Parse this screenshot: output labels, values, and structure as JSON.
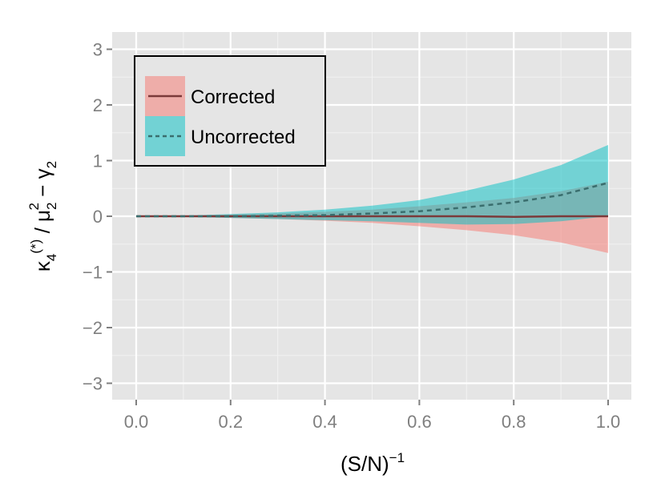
{
  "chart_data": {
    "type": "area",
    "x_axis": {
      "label_base": "(S/N)",
      "label_sup": "−1",
      "range": [
        0,
        1
      ],
      "ticks": [
        "0.0",
        "0.2",
        "0.4",
        "0.6",
        "0.8",
        "1.0"
      ]
    },
    "y_axis": {
      "label_parts": [
        "κ",
        "4",
        "(*)",
        " / μ",
        "2",
        "2",
        " − γ",
        "2"
      ],
      "range": [
        -3.3,
        3.3
      ],
      "ticks": [
        "3",
        "2",
        "1",
        "0",
        "−1",
        "−2",
        "−3"
      ]
    },
    "grid": true,
    "legend": {
      "position": "top-left"
    },
    "series": [
      {
        "name": "Corrected",
        "line_style": "solid",
        "line_color": "#7b3a3a",
        "fill_color": "#f8766d",
        "fill_opacity": 0.5,
        "x": [
          0.0,
          0.1,
          0.2,
          0.3,
          0.4,
          0.5,
          0.6,
          0.7,
          0.8,
          0.9,
          1.0
        ],
        "mean": [
          0,
          0,
          0,
          0,
          0,
          0,
          0,
          0,
          -0.01,
          0,
          0
        ],
        "lower": [
          0,
          -0.01,
          -0.03,
          -0.05,
          -0.08,
          -0.12,
          -0.18,
          -0.25,
          -0.34,
          -0.47,
          -0.66
        ],
        "upper": [
          0,
          0.01,
          0.03,
          0.05,
          0.08,
          0.12,
          0.18,
          0.25,
          0.33,
          0.45,
          0.62
        ]
      },
      {
        "name": "Uncorrected",
        "line_style": "dashed",
        "line_color": "#3a6e6e",
        "fill_color": "#00bfc4",
        "fill_opacity": 0.5,
        "x": [
          0.0,
          0.1,
          0.2,
          0.3,
          0.4,
          0.5,
          0.6,
          0.7,
          0.8,
          0.9,
          1.0
        ],
        "mean": [
          0,
          0,
          0.0,
          0.01,
          0.02,
          0.05,
          0.09,
          0.16,
          0.25,
          0.38,
          0.6
        ],
        "lower": [
          0,
          -0.01,
          -0.03,
          -0.05,
          -0.07,
          -0.09,
          -0.12,
          -0.15,
          -0.14,
          -0.09,
          0.0
        ],
        "upper": [
          0,
          0.01,
          0.04,
          0.07,
          0.12,
          0.19,
          0.29,
          0.46,
          0.66,
          0.92,
          1.28
        ]
      }
    ]
  }
}
